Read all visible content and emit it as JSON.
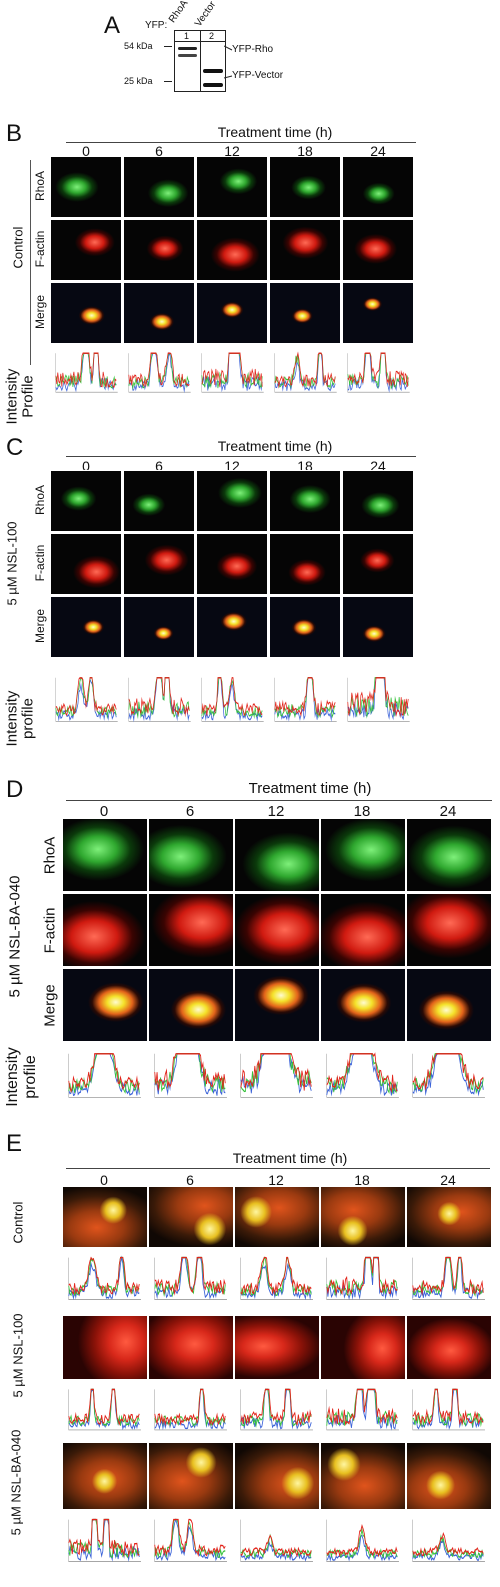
{
  "panel_a": {
    "label": "A",
    "yfp_prefix": "YFP:",
    "lane_headers": [
      "RhoA",
      "Vector"
    ],
    "lane_numbers": [
      "1",
      "2"
    ],
    "markers": [
      "54 kDa",
      "25 kDa"
    ],
    "band_labels": [
      "YFP-Rho",
      "YFP-Vector"
    ]
  },
  "panel_b": {
    "label": "B",
    "title": "Treatment time (h)",
    "times": [
      "0",
      "6",
      "12",
      "18",
      "24"
    ],
    "group_label": "Control",
    "row_labels": [
      "RhoA",
      "F-actin",
      "Merge"
    ],
    "profile_label_line1": "Intensity",
    "profile_label_line2": "Profile"
  },
  "panel_c": {
    "label": "C",
    "title": "Treatment time (h)",
    "times": [
      "0",
      "6",
      "12",
      "18",
      "24"
    ],
    "group_label": "5 µM NSL-100",
    "row_labels": [
      "RhoA",
      "F-actin",
      "Merge"
    ],
    "profile_label_line1": "Intensity",
    "profile_label_line2": "profile"
  },
  "panel_d": {
    "label": "D",
    "title": "Treatment time (h)",
    "times": [
      "0",
      "6",
      "12",
      "18",
      "24"
    ],
    "group_label": "5 µM NSL-BA-040",
    "row_labels": [
      "RhoA",
      "F-actin",
      "Merge"
    ],
    "profile_label_line1": "Intensity",
    "profile_label_line2": "profile"
  },
  "panel_e": {
    "label": "E",
    "title": "Treatment time (h)",
    "times": [
      "0",
      "6",
      "12",
      "18",
      "24"
    ],
    "group_labels": [
      "Control",
      "5 µM NSL-100",
      "5 µM NSL-BA-040"
    ]
  },
  "colors": {
    "green": "#35c23a",
    "red": "#e2231a",
    "yellow": "#f2e23a",
    "blue": "#3a62d8"
  }
}
